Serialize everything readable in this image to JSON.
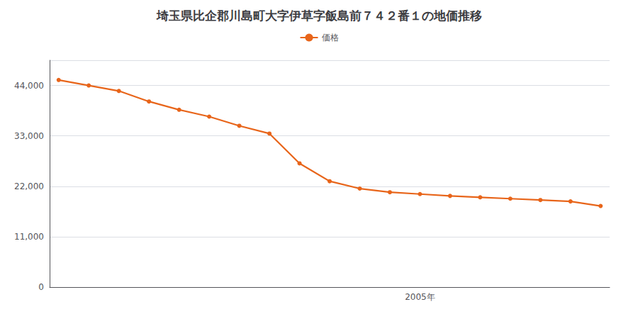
{
  "chart_data": {
    "type": "line",
    "title": "埼玉県比企郡川島町大字伊草字飯島前７４２番１の地価推移",
    "x": [
      1993,
      1994,
      1995,
      1996,
      1997,
      1998,
      1999,
      2000,
      2001,
      2002,
      2003,
      2004,
      2005,
      2006,
      2007,
      2008,
      2009,
      2010,
      2011
    ],
    "series": [
      {
        "name": "価格",
        "color": "#e8651a",
        "marker": "circle",
        "values": [
          45200,
          44000,
          42800,
          40500,
          38700,
          37200,
          35200,
          33500,
          27000,
          23100,
          21500,
          20700,
          20300,
          19900,
          19600,
          19300,
          19000,
          18700,
          17700
        ]
      }
    ],
    "xlim": [
      1992.7,
      2011.3
    ],
    "xticks": [
      {
        "value": 2005,
        "label": "2005年"
      }
    ],
    "ylim": [
      0,
      49500
    ],
    "yticks": [
      0,
      {
        "value": 11000,
        "label": "11,000"
      },
      {
        "value": 22000,
        "label": "22,000"
      },
      {
        "value": 33000,
        "label": "33,000"
      },
      {
        "value": 44000,
        "label": "44,000"
      }
    ],
    "grid": true,
    "legend": "top"
  }
}
